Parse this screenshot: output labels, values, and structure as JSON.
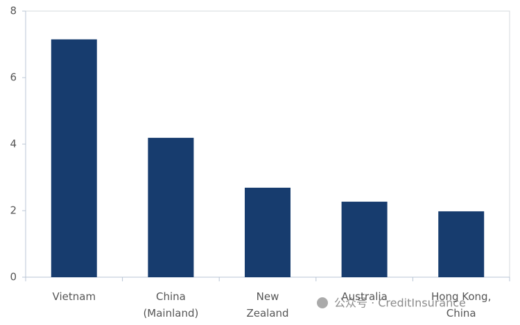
{
  "chart_data": {
    "type": "bar",
    "categories": [
      "Vietnam",
      "China\n(Mainland)",
      "New\nZealand",
      "Australia",
      "Hong Kong,\nChina"
    ],
    "values": [
      7.15,
      4.19,
      2.69,
      2.27,
      1.98
    ],
    "color": "#173c6e",
    "ylim": [
      0,
      8
    ],
    "yticks": [
      0,
      2,
      4,
      6,
      8
    ],
    "grid": false,
    "watermark": "公众号 · CreditInsurance"
  }
}
